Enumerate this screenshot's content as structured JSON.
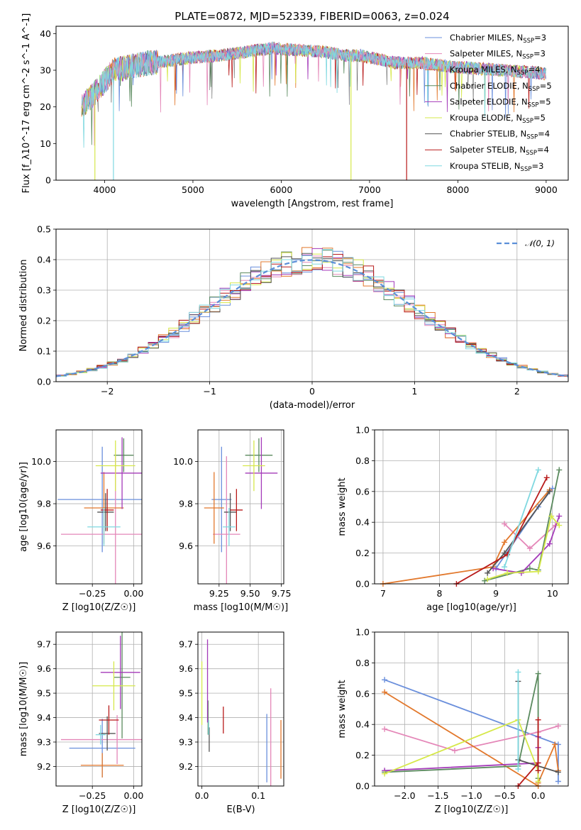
{
  "figure": {
    "title": "PLATE=0872, MJD=52339, FIBERID=0063, z=0.024"
  },
  "series": [
    {
      "name": "Chabrier MILES",
      "nssp": "3",
      "color": "#6a8fdc"
    },
    {
      "name": "Salpeter MILES",
      "nssp": "3",
      "color": "#e487b8"
    },
    {
      "name": "Kroupa MILES",
      "nssp": "4",
      "color": "#e2782c"
    },
    {
      "name": "Chabrier ELODIE",
      "nssp": "5",
      "color": "#5a8a5e"
    },
    {
      "name": "Salpeter ELODIE",
      "nssp": "5",
      "color": "#a43ab9"
    },
    {
      "name": "Kroupa ELODIE",
      "nssp": "5",
      "color": "#d6e84a"
    },
    {
      "name": "Chabrier STELIB",
      "nssp": "4",
      "color": "#555555"
    },
    {
      "name": "Salpeter STELIB",
      "nssp": "4",
      "color": "#b81a1a"
    },
    {
      "name": "Kroupa STELIB",
      "nssp": "3",
      "color": "#7fd8e0"
    }
  ],
  "chart_data": [
    {
      "type": "line",
      "id": "spectrum",
      "xlabel": "wavelength [Angstrom, rest frame]",
      "ylabel": "Flux [f_λ10^-17 erg cm^-2 s^-1 A^-1]",
      "xlim": [
        3450,
        9250
      ],
      "ylim": [
        0,
        42
      ],
      "xticks": [
        4000,
        5000,
        6000,
        7000,
        8000,
        9000
      ],
      "yticks": [
        0,
        10,
        20,
        30,
        40
      ],
      "legend_position": "top-right",
      "grid": false,
      "continuum": {
        "x": [
          3740,
          3900,
          4000,
          4100,
          4300,
          4500,
          4700,
          5000,
          5300,
          5600,
          5900,
          6200,
          6500,
          6700,
          6900,
          7100,
          7300,
          7600,
          7900,
          8200,
          8500,
          8800,
          9000
        ],
        "y": [
          20,
          24,
          27,
          30,
          31,
          32,
          32.5,
          33.5,
          34,
          35,
          36,
          35.5,
          35,
          34,
          34,
          33,
          32,
          32,
          31,
          30.5,
          30,
          29.5,
          29
        ]
      },
      "dropouts": [
        {
          "series": "Kroupa ELODIE",
          "x": 3890,
          "y": 0
        },
        {
          "series": "Kroupa STELIB",
          "x": 4100,
          "y": 0
        },
        {
          "series": "Kroupa ELODIE",
          "x": 6790,
          "y": 0
        },
        {
          "series": "Salpeter STELIB",
          "x": 7420,
          "y": 0
        }
      ]
    },
    {
      "type": "area",
      "id": "residuals",
      "xlabel": "(data-model)/error",
      "ylabel": "Normed distribution",
      "xlim": [
        -2.5,
        2.5
      ],
      "ylim": [
        0,
        0.5
      ],
      "xticks": [
        -2,
        -1,
        0,
        1,
        2
      ],
      "yticks": [
        0,
        0.1,
        0.2,
        0.3,
        0.4,
        0.5
      ],
      "grid": true,
      "legend": "𝒩(0, 1)",
      "legend_position": "top-right",
      "bin_width": 0.1
    },
    {
      "type": "scatter",
      "id": "age-vs-Z",
      "xlabel": "Z [log10(Z/Z☉)]",
      "ylabel": "age [log10(age/yr)]",
      "xlim": [
        -0.47,
        0.05
      ],
      "ylim": [
        9.42,
        10.15
      ],
      "xticks": [
        -0.25,
        0.0
      ],
      "yticks": [
        9.6,
        9.8,
        10.0
      ],
      "grid": true,
      "points": [
        {
          "series": "Chabrier MILES",
          "x": -0.19,
          "y": 9.82,
          "xerr": 0.27,
          "yerr": 0.25
        },
        {
          "series": "Salpeter MILES",
          "x": -0.11,
          "y": 9.655,
          "xerr": 0.33,
          "yerr": 0.37
        },
        {
          "series": "Kroupa MILES",
          "x": -0.18,
          "y": 9.78,
          "xerr": 0.12,
          "yerr": 0.17
        },
        {
          "series": "Chabrier ELODIE",
          "x": -0.06,
          "y": 10.03,
          "xerr": 0.06,
          "yerr": 0.08
        },
        {
          "series": "Salpeter ELODIE",
          "x": -0.07,
          "y": 9.945,
          "xerr": 0.13,
          "yerr": 0.17
        },
        {
          "series": "Kroupa ELODIE",
          "x": -0.11,
          "y": 9.98,
          "xerr": 0.12,
          "yerr": 0.12
        },
        {
          "series": "Chabrier STELIB",
          "x": -0.17,
          "y": 9.76,
          "xerr": 0.05,
          "yerr": 0.09
        },
        {
          "series": "Salpeter STELIB",
          "x": -0.16,
          "y": 9.77,
          "xerr": 0.04,
          "yerr": 0.1
        },
        {
          "series": "Kroupa STELIB",
          "x": -0.18,
          "y": 9.69,
          "xerr": 0.1,
          "yerr": 0.09
        }
      ]
    },
    {
      "type": "scatter",
      "id": "age-vs-mass",
      "xlabel": "mass [log10(M/M☉)]",
      "ylabel": "",
      "xlim": [
        9.08,
        9.77
      ],
      "ylim": [
        9.42,
        10.15
      ],
      "xticks": [
        9.25,
        9.5,
        9.75
      ],
      "yticks": [
        9.6,
        9.8,
        10.0
      ],
      "grid": true,
      "points": [
        {
          "series": "Chabrier MILES",
          "x": 9.27,
          "y": 9.82,
          "xerr": 0.08,
          "yerr": 0.25
        },
        {
          "series": "Salpeter MILES",
          "x": 9.31,
          "y": 9.655,
          "xerr": 0.11,
          "yerr": 0.37
        },
        {
          "series": "Kroupa MILES",
          "x": 9.21,
          "y": 9.78,
          "xerr": 0.08,
          "yerr": 0.17
        },
        {
          "series": "Chabrier ELODIE",
          "x": 9.57,
          "y": 10.03,
          "xerr": 0.11,
          "yerr": 0.08
        },
        {
          "series": "Salpeter ELODIE",
          "x": 9.59,
          "y": 9.945,
          "xerr": 0.13,
          "yerr": 0.17
        },
        {
          "series": "Kroupa ELODIE",
          "x": 9.53,
          "y": 9.98,
          "xerr": 0.09,
          "yerr": 0.12
        },
        {
          "series": "Chabrier STELIB",
          "x": 9.34,
          "y": 9.76,
          "xerr": 0.05,
          "yerr": 0.09
        },
        {
          "series": "Salpeter STELIB",
          "x": 9.39,
          "y": 9.77,
          "xerr": 0.05,
          "yerr": 0.1
        },
        {
          "series": "Kroupa STELIB",
          "x": 9.33,
          "y": 9.69,
          "xerr": 0.05,
          "yerr": 0.09
        }
      ]
    },
    {
      "type": "line",
      "id": "mass-weight-vs-age",
      "xlabel": "age [log10(age/yr)]",
      "ylabel": "mass weight",
      "xlim": [
        6.85,
        10.28
      ],
      "ylim": [
        0,
        1
      ],
      "xticks": [
        7,
        8,
        9,
        10
      ],
      "yticks": [
        0.0,
        0.2,
        0.4,
        0.6,
        0.8,
        1.0
      ],
      "grid": true,
      "series": [
        {
          "name": "Chabrier MILES",
          "x": [
            9.0,
            9.75,
            10.0
          ],
          "y": [
            0.1,
            0.5,
            0.62
          ]
        },
        {
          "name": "Salpeter MILES",
          "x": [
            9.15,
            9.6,
            10.05
          ],
          "y": [
            0.39,
            0.23,
            0.38
          ]
        },
        {
          "name": "Kroupa MILES",
          "x": [
            7.0,
            8.95,
            9.15,
            9.95
          ],
          "y": [
            0.0,
            0.11,
            0.27,
            0.61
          ]
        },
        {
          "name": "Chabrier ELODIE",
          "x": [
            8.8,
            9.6,
            9.75,
            10.12
          ],
          "y": [
            0.02,
            0.1,
            0.09,
            0.74
          ]
        },
        {
          "name": "Salpeter ELODIE",
          "x": [
            8.95,
            9.45,
            9.95,
            10.12
          ],
          "y": [
            0.1,
            0.07,
            0.26,
            0.44
          ]
        },
        {
          "name": "Kroupa ELODIE",
          "x": [
            8.85,
            9.2,
            9.75,
            9.98,
            10.12
          ],
          "y": [
            0.03,
            0.07,
            0.08,
            0.44,
            0.38
          ]
        },
        {
          "name": "Chabrier STELIB",
          "x": [
            8.85,
            9.15,
            9.95
          ],
          "y": [
            0.07,
            0.2,
            0.6
          ]
        },
        {
          "name": "Salpeter STELIB",
          "x": [
            8.3,
            9.2,
            9.9
          ],
          "y": [
            0.0,
            0.19,
            0.69
          ]
        },
        {
          "name": "Kroupa STELIB",
          "x": [
            9.15,
            9.75
          ],
          "y": [
            0.11,
            0.74
          ]
        }
      ]
    },
    {
      "type": "scatter",
      "id": "mass-vs-Z",
      "xlabel": "Z [log10(Z/Z☉)]",
      "ylabel": "mass [log10(M/M☉)]",
      "xlim": [
        -0.47,
        0.05
      ],
      "ylim": [
        9.12,
        9.75
      ],
      "xticks": [
        -0.25,
        0.0
      ],
      "yticks": [
        9.2,
        9.3,
        9.4,
        9.5,
        9.6,
        9.7
      ],
      "grid": true,
      "points": [
        {
          "series": "Chabrier MILES",
          "x": -0.19,
          "y": 9.275,
          "xerr": 0.2,
          "yerr": 0.12
        },
        {
          "series": "Salpeter MILES",
          "x": -0.1,
          "y": 9.31,
          "xerr": 0.34,
          "yerr": 0.1
        },
        {
          "series": "Kroupa MILES",
          "x": -0.19,
          "y": 9.205,
          "xerr": 0.13,
          "yerr": 0.05
        },
        {
          "series": "Chabrier ELODIE",
          "x": -0.07,
          "y": 9.565,
          "xerr": 0.05,
          "yerr": 0.25
        },
        {
          "series": "Salpeter ELODIE",
          "x": -0.08,
          "y": 9.585,
          "xerr": 0.12,
          "yerr": 0.15
        },
        {
          "series": "Kroupa ELODIE",
          "x": -0.12,
          "y": 9.53,
          "xerr": 0.13,
          "yerr": 0.1
        },
        {
          "series": "Chabrier STELIB",
          "x": -0.16,
          "y": 9.335,
          "xerr": 0.05,
          "yerr": 0.07
        },
        {
          "series": "Salpeter STELIB",
          "x": -0.15,
          "y": 9.39,
          "xerr": 0.06,
          "yerr": 0.06
        },
        {
          "series": "Kroupa STELIB",
          "x": -0.2,
          "y": 9.33,
          "xerr": 0.03,
          "yerr": 0.04
        }
      ]
    },
    {
      "type": "scatter",
      "id": "mass-vs-ebv",
      "xlabel": "E(B-V)",
      "ylabel": "",
      "xlim": [
        -0.007,
        0.145
      ],
      "ylim": [
        9.12,
        9.75
      ],
      "xticks": [
        0.0,
        0.1
      ],
      "yticks": [
        9.2,
        9.3,
        9.4,
        9.5,
        9.6,
        9.7
      ],
      "grid": true,
      "points": [
        {
          "series": "Chabrier MILES",
          "x": 0.115,
          "y": 9.275,
          "yerr": 0.14
        },
        {
          "series": "Salpeter MILES",
          "x": 0.122,
          "y": 9.32,
          "yerr": 0.2
        },
        {
          "series": "Kroupa MILES",
          "x": 0.14,
          "y": 9.27,
          "yerr": 0.12
        },
        {
          "series": "Chabrier ELODIE",
          "x": 0.011,
          "y": 9.4,
          "yerr": 0.07
        },
        {
          "series": "Salpeter ELODIE",
          "x": 0.01,
          "y": 9.55,
          "yerr": 0.17
        },
        {
          "series": "Kroupa ELODIE",
          "x": 0.0,
          "y": 9.5,
          "yerr": 0.13
        },
        {
          "series": "Chabrier STELIB",
          "x": 0.013,
          "y": 9.31,
          "yerr": 0.05
        },
        {
          "series": "Salpeter STELIB",
          "x": 0.038,
          "y": 9.39,
          "yerr": 0.055
        },
        {
          "series": "Kroupa STELIB",
          "x": 0.012,
          "y": 9.36,
          "yerr": 0.03
        }
      ]
    },
    {
      "type": "line",
      "id": "mass-weight-vs-Z",
      "xlabel": "Z [log10(Z/Z☉)]",
      "ylabel": "mass weight",
      "xlim": [
        -2.45,
        0.45
      ],
      "ylim": [
        0,
        1
      ],
      "xticks": [
        -2.0,
        -1.5,
        -1.0,
        -0.5,
        0.0
      ],
      "yticks": [
        0.0,
        0.2,
        0.4,
        0.6,
        0.8,
        1.0
      ],
      "grid": true,
      "series": [
        {
          "name": "Chabrier MILES",
          "x": [
            -2.3,
            0.3,
            0.3
          ],
          "y": [
            0.69,
            0.27,
            0.03
          ]
        },
        {
          "name": "Salpeter MILES",
          "x": [
            -2.3,
            -1.25,
            0.0,
            0.3
          ],
          "y": [
            0.37,
            0.23,
            0.35,
            0.39
          ]
        },
        {
          "name": "Kroupa MILES",
          "x": [
            -2.3,
            0.0,
            0.0,
            0.25,
            0.3
          ],
          "y": [
            0.61,
            0.0,
            0.02,
            0.27,
            0.1
          ]
        },
        {
          "name": "Chabrier ELODIE",
          "x": [
            -2.3,
            -0.3,
            0.0,
            0.0
          ],
          "y": [
            0.09,
            0.13,
            0.73,
            0.05
          ]
        },
        {
          "name": "Salpeter ELODIE",
          "x": [
            -2.3,
            0.0,
            0.0,
            0.0
          ],
          "y": [
            0.1,
            0.15,
            0.32,
            0.25
          ]
        },
        {
          "name": "Kroupa ELODIE",
          "x": [
            -2.3,
            -0.3,
            0.0,
            0.0
          ],
          "y": [
            0.08,
            0.43,
            0.1,
            0.03
          ]
        },
        {
          "name": "Chabrier STELIB",
          "x": [
            -0.3,
            -0.3,
            0.3
          ],
          "y": [
            0.68,
            0.17,
            0.09
          ]
        },
        {
          "name": "Salpeter STELIB",
          "x": [
            -0.3,
            0.0,
            0.0,
            0.0
          ],
          "y": [
            0.0,
            0.15,
            0.43,
            0.1
          ]
        },
        {
          "name": "Kroupa STELIB",
          "x": [
            -0.3,
            -0.3
          ],
          "y": [
            0.11,
            0.74
          ]
        }
      ]
    }
  ]
}
